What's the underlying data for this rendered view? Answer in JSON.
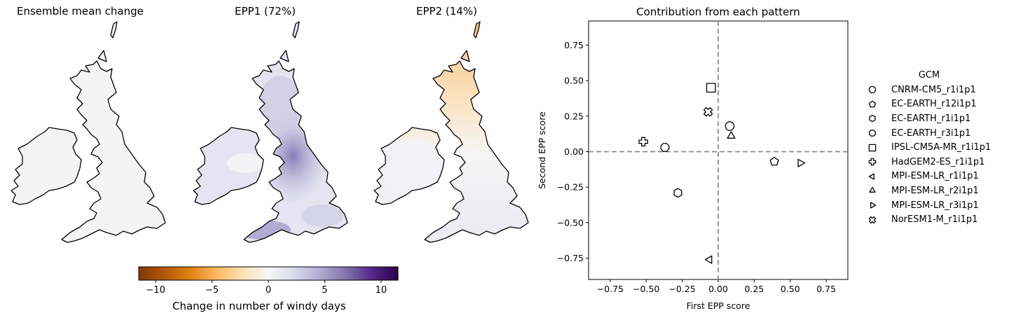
{
  "maps": [
    {
      "title": "Ensemble mean change",
      "field": "neutral"
    },
    {
      "title": "EPP1 (72%)",
      "field": "purple"
    },
    {
      "title": "EPP2 (14%)",
      "field": "orange-north"
    }
  ],
  "colorbar": {
    "label": "Change in number of windy days",
    "min": -11.5,
    "max": 11.5,
    "ticks": [
      -10,
      -5,
      0,
      5,
      10
    ],
    "tick_labels": [
      "−10",
      "−5",
      "0",
      "5",
      "10"
    ],
    "colormap": [
      "#7f3b08",
      "#b35806",
      "#e08214",
      "#fdb863",
      "#fee0b6",
      "#f7f7f7",
      "#d8daeb",
      "#b2abd2",
      "#8073ac",
      "#542788",
      "#2d004b"
    ]
  },
  "chart_data": {
    "type": "scatter",
    "title": "Contribution from each pattern",
    "xlabel": "First EPP score",
    "ylabel": "Second EPP score",
    "xlim": [
      -0.9,
      0.9
    ],
    "ylim": [
      -0.9,
      0.92
    ],
    "xticks": [
      -0.75,
      -0.5,
      -0.25,
      0.0,
      0.25,
      0.5,
      0.75
    ],
    "yticks": [
      -0.75,
      -0.5,
      -0.25,
      0.0,
      0.25,
      0.5,
      0.75
    ],
    "xtick_labels": [
      "−0.75",
      "−0.50",
      "−0.25",
      "0.00",
      "0.25",
      "0.50",
      "0.75"
    ],
    "ytick_labels": [
      "−0.75",
      "−0.50",
      "−0.25",
      "0.00",
      "0.25",
      "0.50",
      "0.75"
    ],
    "reference_lines": {
      "x": 0,
      "y": 0
    },
    "legend_title": "GCM",
    "legend_position": "right",
    "series": [
      {
        "name": "CNRM-CM5_r1i1p1",
        "marker": "circle",
        "x": 0.08,
        "y": 0.18
      },
      {
        "name": "EC-EARTH_r12i1p1",
        "marker": "pentagon",
        "x": 0.39,
        "y": -0.07
      },
      {
        "name": "EC-EARTH_r1i1p1",
        "marker": "hexagon",
        "x": -0.28,
        "y": -0.29
      },
      {
        "name": "EC-EARTH_r3i1p1",
        "marker": "octagon",
        "x": -0.37,
        "y": 0.03
      },
      {
        "name": "IPSL-CM5A-MR_r1i1p1",
        "marker": "square",
        "x": -0.05,
        "y": 0.45
      },
      {
        "name": "HadGEM2-ES_r1i1p1",
        "marker": "plus",
        "x": -0.52,
        "y": 0.07
      },
      {
        "name": "MPI-ESM-LR_r1i1p1",
        "marker": "triangle-left",
        "x": -0.06,
        "y": -0.76
      },
      {
        "name": "MPI-ESM-LR_r2i1p1",
        "marker": "triangle-up",
        "x": 0.09,
        "y": 0.11
      },
      {
        "name": "MPI-ESM-LR_r3i1p1",
        "marker": "triangle-right",
        "x": 0.57,
        "y": -0.08
      },
      {
        "name": "NorESM1-M_r1i1p1",
        "marker": "x-filled",
        "x": -0.07,
        "y": 0.28
      }
    ]
  }
}
